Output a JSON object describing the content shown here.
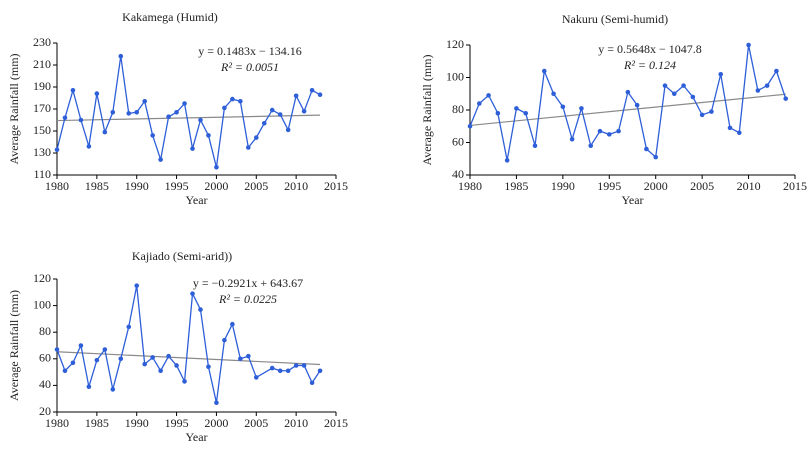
{
  "chart_data": [
    {
      "type": "line",
      "title": "Kakamega (Humid)",
      "xlabel": "Year",
      "ylabel": "Average Rainfall (mm)",
      "x": [
        1980,
        1981,
        1982,
        1983,
        1984,
        1985,
        1986,
        1987,
        1988,
        1989,
        1990,
        1991,
        1992,
        1993,
        1994,
        1995,
        1996,
        1997,
        1998,
        1999,
        2000,
        2001,
        2002,
        2003,
        2004,
        2005,
        2006,
        2007,
        2008,
        2009,
        2010,
        2011,
        2012,
        2013
      ],
      "values": [
        133,
        162,
        187,
        160,
        136,
        184,
        149,
        167,
        218,
        166,
        167,
        177,
        146,
        124,
        163,
        167,
        175,
        134,
        160,
        146,
        117,
        171,
        179,
        177,
        135,
        144,
        157,
        169,
        165,
        151,
        182,
        168,
        187,
        183
      ],
      "color": "#2e5fd8",
      "trendline": {
        "x": [
          1980,
          2013
        ],
        "values": [
          159.5,
          164.4
        ],
        "color": "#8a8a8a"
      },
      "annotations": [
        "y = 0.1483x − 134.16",
        "R² = 0.0051"
      ],
      "xlim": [
        1980,
        2015
      ],
      "xticks": [
        1980,
        1985,
        1990,
        1995,
        2000,
        2005,
        2010,
        2015
      ],
      "ylim": [
        110,
        230
      ],
      "yticks": [
        110,
        130,
        150,
        170,
        190,
        210,
        230
      ]
    },
    {
      "type": "line",
      "title": "Nakuru (Semi-humid)",
      "xlabel": "Year",
      "ylabel": "Average Rainfall (mm)",
      "x": [
        1980,
        1981,
        1982,
        1983,
        1984,
        1985,
        1986,
        1987,
        1988,
        1989,
        1990,
        1991,
        1992,
        1993,
        1994,
        1995,
        1996,
        1997,
        1998,
        1999,
        2000,
        2001,
        2002,
        2003,
        2004,
        2005,
        2006,
        2007,
        2008,
        2009,
        2010,
        2011,
        2012,
        2013,
        2014
      ],
      "values": [
        70,
        84,
        89,
        78,
        49,
        81,
        78,
        58,
        104,
        90,
        82,
        62,
        81,
        58,
        67,
        65,
        67,
        91,
        83,
        56,
        51,
        95,
        90,
        95,
        88,
        77,
        79,
        102,
        69,
        66,
        120,
        92,
        95,
        104,
        87
      ],
      "color": "#2e5fd8",
      "trendline": {
        "x": [
          1980,
          2014
        ],
        "values": [
          70.5,
          89.7
        ],
        "color": "#8a8a8a"
      },
      "annotations": [
        "y = 0.5648x − 1047.8",
        "R² = 0.124"
      ],
      "xlim": [
        1980,
        2015
      ],
      "xticks": [
        1980,
        1985,
        1990,
        1995,
        2000,
        2005,
        2010,
        2015
      ],
      "ylim": [
        40,
        120
      ],
      "yticks": [
        40,
        60,
        80,
        100,
        120
      ]
    },
    {
      "type": "line",
      "title": "Kajiado (Semi-arid))",
      "xlabel": "Year",
      "ylabel": "Average Rainfall (mm)",
      "x": [
        1980,
        1981,
        1982,
        1983,
        1984,
        1985,
        1986,
        1987,
        1988,
        1989,
        1990,
        1991,
        1992,
        1993,
        1994,
        1995,
        1996,
        1997,
        1998,
        1999,
        2000,
        2001,
        2002,
        2003,
        2004,
        2005,
        2007,
        2008,
        2009,
        2010,
        2011,
        2012,
        2013
      ],
      "values": [
        67,
        51,
        57,
        70,
        39,
        59,
        67,
        37,
        60,
        84,
        115,
        56,
        61,
        51,
        62,
        55,
        43,
        109,
        97,
        54,
        27,
        74,
        86,
        60,
        62,
        46,
        53,
        51,
        51,
        55,
        55,
        42,
        51
      ],
      "color": "#2e5fd8",
      "trendline": {
        "x": [
          1980,
          2013
        ],
        "values": [
          65.3,
          55.7
        ],
        "color": "#8a8a8a"
      },
      "annotations": [
        "y = −0.2921x + 643.67",
        "R² = 0.0225"
      ],
      "xlim": [
        1980,
        2015
      ],
      "xticks": [
        1980,
        1985,
        1990,
        1995,
        2000,
        2005,
        2010,
        2015
      ],
      "ylim": [
        20,
        120
      ],
      "yticks": [
        20,
        40,
        60,
        80,
        100,
        120
      ]
    }
  ]
}
